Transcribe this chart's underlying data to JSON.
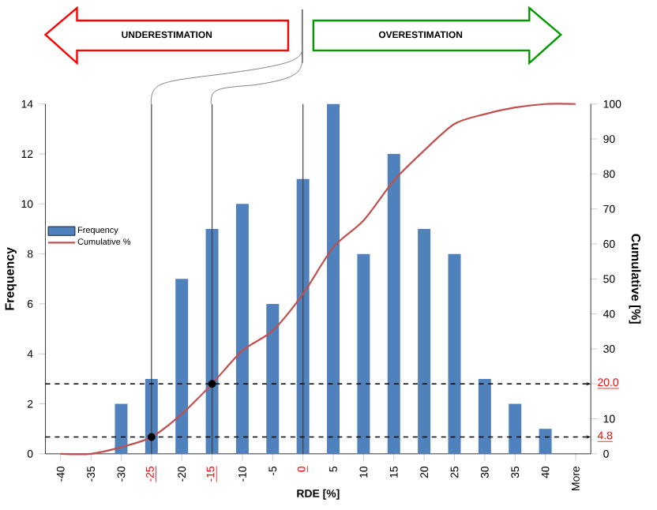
{
  "chart_data": {
    "type": "bar",
    "xlabel": "RDE [%]",
    "ylabel": "Frequency",
    "y2label": "Cumulative [%]",
    "categories": [
      "-40",
      "-35",
      "-30",
      "-25",
      "-20",
      "-15",
      "-10",
      "-5",
      "0",
      "5",
      "10",
      "15",
      "20",
      "25",
      "30",
      "35",
      "40",
      "More"
    ],
    "series": [
      {
        "name": "Frequency",
        "color": "#4f81bd",
        "values": [
          0,
          0,
          2,
          3,
          7,
          9,
          10,
          6,
          11,
          14,
          8,
          12,
          9,
          8,
          3,
          2,
          1,
          0
        ]
      },
      {
        "name": "Cumulative %",
        "type": "line",
        "axis": "y2",
        "color": "#c0504d",
        "values": [
          0,
          0,
          1.9,
          4.8,
          11.4,
          20.0,
          29.5,
          35.2,
          45.7,
          59.0,
          66.7,
          78.1,
          86.7,
          94.3,
          97.1,
          99.0,
          100,
          100
        ]
      },
      {
        "type": "scatter",
        "axis": "y2",
        "marker": "circle",
        "color": "#000000",
        "x": [
          "-25",
          "-15"
        ],
        "values": [
          4.8,
          20.0
        ]
      }
    ],
    "ylim": [
      0,
      14
    ],
    "yticks": [
      0,
      2,
      4,
      6,
      8,
      10,
      12,
      14
    ],
    "y2lim": [
      0,
      100
    ],
    "y2ticks": [
      0,
      10,
      {
        "value": 20,
        "label": null
      },
      30,
      40,
      50,
      60,
      70,
      80,
      90,
      100
    ],
    "ref_lines": [
      {
        "axis": "x",
        "value": "-25",
        "color": "#404040"
      },
      {
        "axis": "x",
        "value": "-15",
        "color": "#404040"
      },
      {
        "axis": "x",
        "value": "0",
        "color": "#404040"
      },
      {
        "axis": "y2",
        "value": 20.0,
        "label": "20.0",
        "color": "#000000",
        "line_style": "dashed"
      },
      {
        "axis": "y2",
        "value": 4.8,
        "label": "4.8",
        "color": "#000000",
        "line_style": "dashed"
      }
    ],
    "annotations": [
      "UNDERESTIMATION",
      "OVERESTIMATION"
    ],
    "legend": "left"
  }
}
